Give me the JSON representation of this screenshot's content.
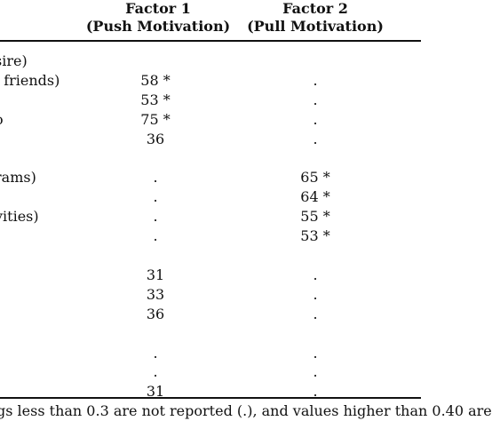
{
  "header": {
    "factor1_title": "Factor 1",
    "factor1_subtitle": "(Push Motivation)",
    "factor2_title": "Factor 2",
    "factor2_subtitle": "(Pull Motivation)"
  },
  "rows": [
    {
      "label": "sire)",
      "f1": "",
      "f2": ""
    },
    {
      "label": "l friends)",
      "f1": "58 *",
      "f2": "."
    },
    {
      "label": "",
      "f1": "53 *",
      "f2": "."
    },
    {
      "label": "o",
      "f1": "75 *",
      "f2": "."
    },
    {
      "label": "",
      "f1": "36",
      "f2": "."
    },
    {
      "label": "",
      "f1": "",
      "f2": ""
    },
    {
      "label": "rams)",
      "f1": ".",
      "f2": "65 *"
    },
    {
      "label": "",
      "f1": ".",
      "f2": "64 *"
    },
    {
      "label": "vities)",
      "f1": ".",
      "f2": "55 *"
    },
    {
      "label": ")",
      "f1": ".",
      "f2": "53 *"
    },
    {
      "label": "",
      "f1": "",
      "f2": ""
    },
    {
      "label": "",
      "f1": "31",
      "f2": "."
    },
    {
      "label": "",
      "f1": "33",
      "f2": "."
    },
    {
      "label": "",
      "f1": "36",
      "f2": "."
    },
    {
      "label": "",
      "f1": "",
      "f2": ""
    },
    {
      "label": "",
      "f1": ".",
      "f2": "."
    },
    {
      "label": "",
      "f1": ".",
      "f2": "."
    },
    {
      "label": "",
      "f1": "31",
      "f2": "."
    }
  ],
  "footnote": "gs less than 0.3 are not reported (.), and values higher than 0.40 are"
}
